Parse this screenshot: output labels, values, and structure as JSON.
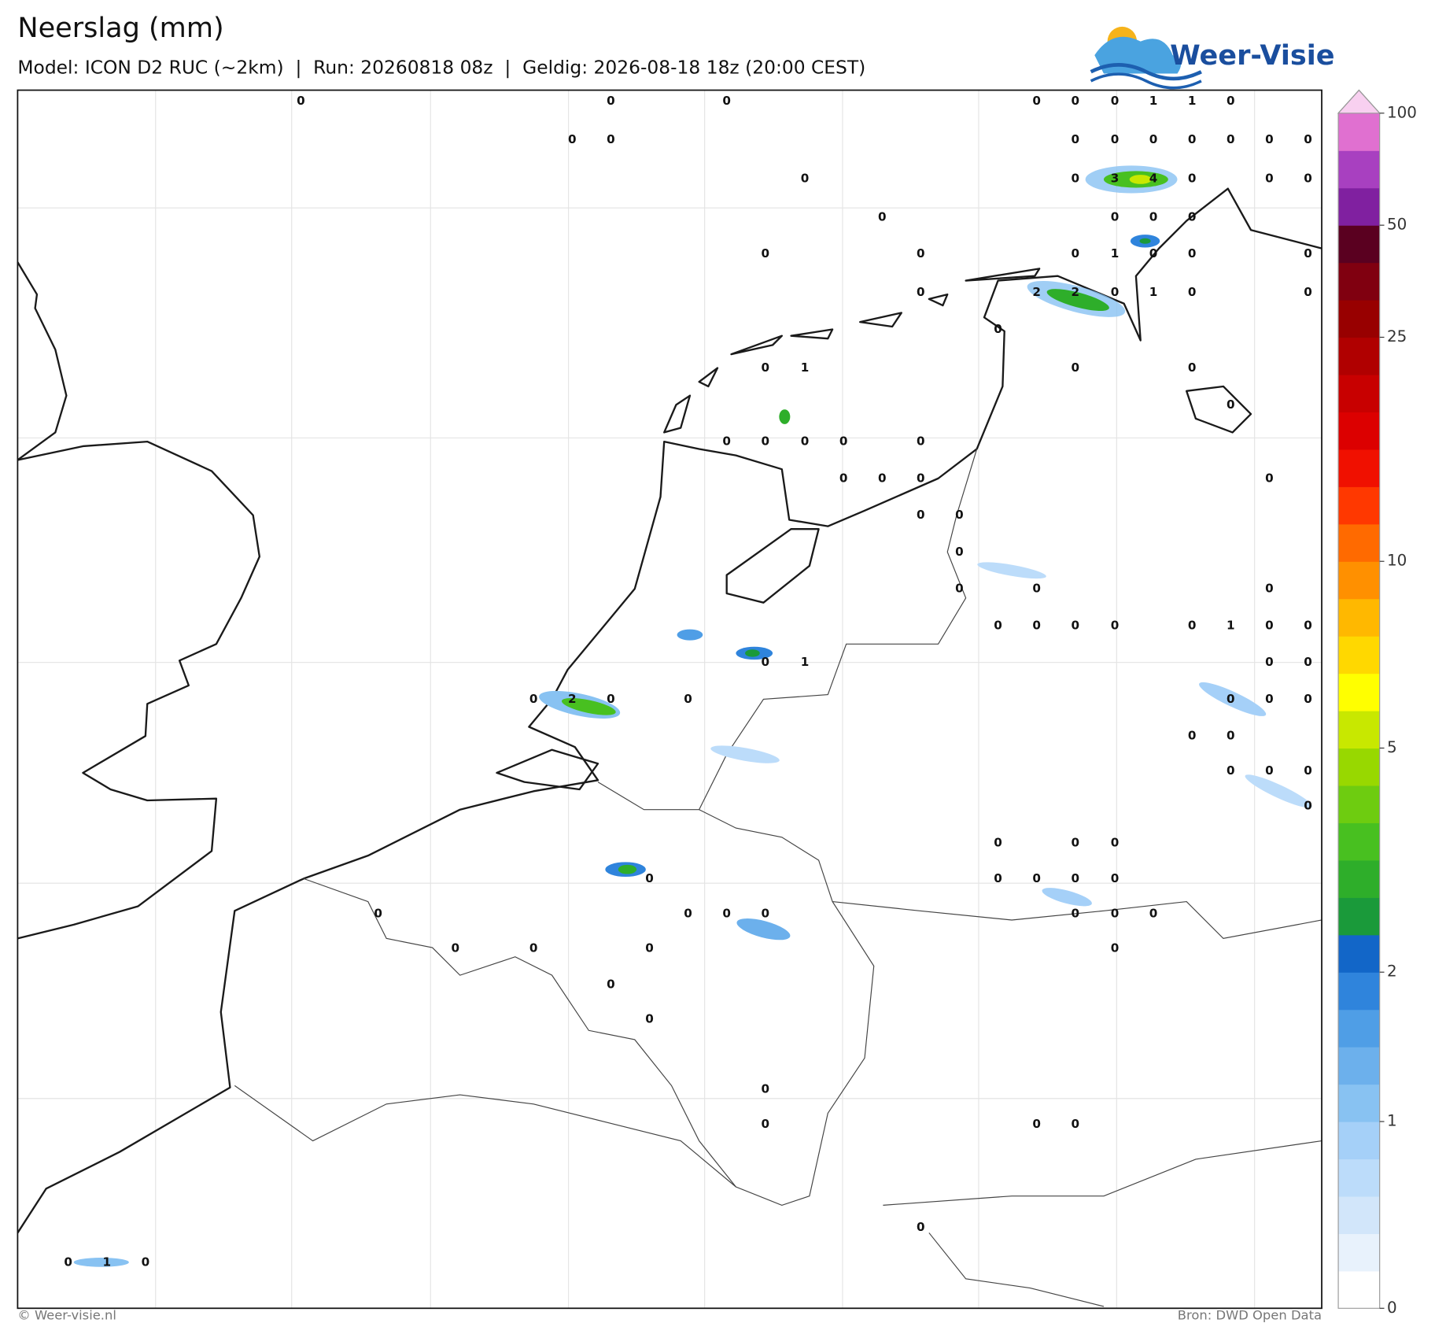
{
  "header": {
    "title": "Neerslag (mm)",
    "subtitle": "Model: ICON D2 RUC (~2km)  |  Run: 20260818 08z  |  Geldig: 2026-08-18 18z (20:00 CEST)"
  },
  "logo": "Weer-Visie",
  "map": {
    "stations": [
      0,
      0,
      0,
      0,
      0,
      0,
      1,
      1,
      0,
      0,
      0,
      0,
      0,
      0,
      0,
      0,
      0,
      0,
      0,
      0,
      3,
      4,
      0,
      0,
      0,
      0,
      0,
      0,
      0,
      0,
      0,
      0,
      1,
      0,
      0,
      0,
      0,
      2,
      2,
      0,
      1,
      0,
      0,
      0,
      0,
      1,
      0,
      0,
      0,
      0,
      0,
      0,
      0,
      0,
      0,
      0,
      0,
      0,
      0,
      0,
      0,
      0,
      0,
      0,
      0,
      0,
      0,
      0,
      0,
      1,
      0,
      0,
      0,
      1,
      0,
      0,
      0,
      2,
      0,
      0,
      0,
      0,
      0,
      0,
      0,
      0,
      0,
      0,
      0,
      0,
      0,
      0,
      0,
      0,
      0,
      0,
      0,
      0,
      0,
      0,
      0,
      0,
      0,
      0,
      0,
      0,
      0,
      0,
      0,
      0,
      0,
      0,
      0,
      0,
      0,
      0,
      1,
      0
    ]
  },
  "colorbar": {
    "levels": [
      0,
      0.1,
      0.2,
      0.5,
      0.8,
      1,
      1.25,
      1.5,
      1.75,
      2,
      2.5,
      3,
      3.5,
      4,
      4.5,
      5,
      6,
      7,
      8,
      9,
      10,
      12,
      14,
      16,
      18,
      20,
      25,
      30,
      40,
      50,
      65,
      80,
      100
    ],
    "colors": [
      "#ffffff",
      "#e8f2fc",
      "#d2e6fa",
      "#bcdcfa",
      "#a5d0f8",
      "#88c2f2",
      "#6cb0ec",
      "#4f9ee6",
      "#2f84dc",
      "#1266c8",
      "#1a9a3a",
      "#2eae2a",
      "#48c020",
      "#6ecc10",
      "#98d800",
      "#c8e800",
      "#ffff00",
      "#ffd800",
      "#ffb800",
      "#ff9000",
      "#ff6a00",
      "#ff3800",
      "#f01000",
      "#dc0000",
      "#c80000",
      "#b00000",
      "#980000",
      "#800010",
      "#5a0020",
      "#8020a0",
      "#a840c0",
      "#e070d0"
    ],
    "extend_color": "#f8d0f0",
    "ticks": [
      0,
      1,
      2,
      5,
      10,
      25,
      50,
      100
    ]
  },
  "footer": {
    "left": "© Weer-visie.nl",
    "right": "Bron: DWD Open Data"
  }
}
